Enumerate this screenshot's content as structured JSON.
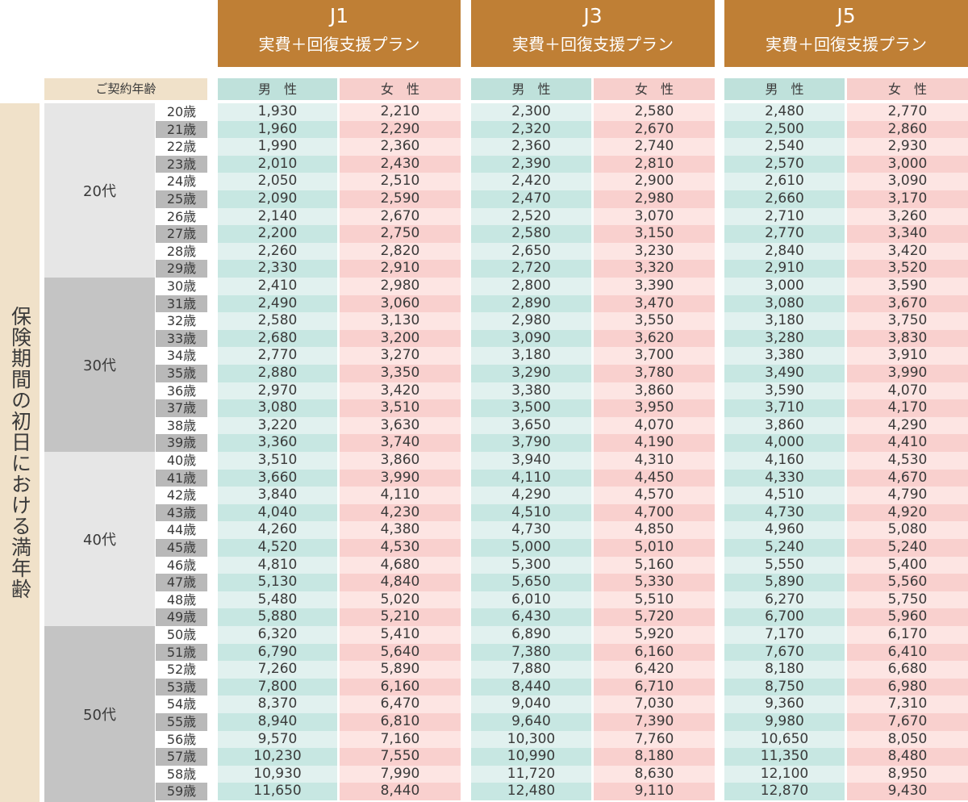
{
  "plans": [
    {
      "name": "J1",
      "title": "実費＋回復支援プラン"
    },
    {
      "name": "J3",
      "title": "実費＋回復支援プラン"
    },
    {
      "name": "J5",
      "title": "実費＋回復支援プラン"
    }
  ],
  "gender_labels": {
    "male": "男　性",
    "female": "女　性"
  },
  "contract_age_label": "ご契約年齢",
  "side_label": "保険期間の初日における満年齢",
  "decades": [
    "20代",
    "30代",
    "40代",
    "50代"
  ],
  "ages": [
    "20歳",
    "21歳",
    "22歳",
    "23歳",
    "24歳",
    "25歳",
    "26歳",
    "27歳",
    "28歳",
    "29歳",
    "30歳",
    "31歳",
    "32歳",
    "33歳",
    "34歳",
    "35歳",
    "36歳",
    "37歳",
    "38歳",
    "39歳",
    "40歳",
    "41歳",
    "42歳",
    "43歳",
    "44歳",
    "45歳",
    "46歳",
    "47歳",
    "48歳",
    "49歳",
    "50歳",
    "51歳",
    "52歳",
    "53歳",
    "54歳",
    "55歳",
    "56歳",
    "57歳",
    "58歳",
    "59歳"
  ],
  "rows": [
    [
      "1,930",
      "2,210",
      "2,300",
      "2,580",
      "2,480",
      "2,770"
    ],
    [
      "1,960",
      "2,290",
      "2,320",
      "2,670",
      "2,500",
      "2,860"
    ],
    [
      "1,990",
      "2,360",
      "2,360",
      "2,740",
      "2,540",
      "2,930"
    ],
    [
      "2,010",
      "2,430",
      "2,390",
      "2,810",
      "2,570",
      "3,000"
    ],
    [
      "2,050",
      "2,510",
      "2,420",
      "2,900",
      "2,610",
      "3,090"
    ],
    [
      "2,090",
      "2,590",
      "2,470",
      "2,980",
      "2,660",
      "3,170"
    ],
    [
      "2,140",
      "2,670",
      "2,520",
      "3,070",
      "2,710",
      "3,260"
    ],
    [
      "2,200",
      "2,750",
      "2,580",
      "3,150",
      "2,770",
      "3,340"
    ],
    [
      "2,260",
      "2,820",
      "2,650",
      "3,230",
      "2,840",
      "3,420"
    ],
    [
      "2,330",
      "2,910",
      "2,720",
      "3,320",
      "2,910",
      "3,520"
    ],
    [
      "2,410",
      "2,980",
      "2,800",
      "3,390",
      "3,000",
      "3,590"
    ],
    [
      "2,490",
      "3,060",
      "2,890",
      "3,470",
      "3,080",
      "3,670"
    ],
    [
      "2,580",
      "3,130",
      "2,980",
      "3,550",
      "3,180",
      "3,750"
    ],
    [
      "2,680",
      "3,200",
      "3,090",
      "3,620",
      "3,280",
      "3,830"
    ],
    [
      "2,770",
      "3,270",
      "3,180",
      "3,700",
      "3,380",
      "3,910"
    ],
    [
      "2,880",
      "3,350",
      "3,290",
      "3,780",
      "3,490",
      "3,990"
    ],
    [
      "2,970",
      "3,420",
      "3,380",
      "3,860",
      "3,590",
      "4,070"
    ],
    [
      "3,080",
      "3,510",
      "3,500",
      "3,950",
      "3,710",
      "4,170"
    ],
    [
      "3,220",
      "3,630",
      "3,650",
      "4,070",
      "3,860",
      "4,290"
    ],
    [
      "3,360",
      "3,740",
      "3,790",
      "4,190",
      "4,000",
      "4,410"
    ],
    [
      "3,510",
      "3,860",
      "3,940",
      "4,310",
      "4,160",
      "4,530"
    ],
    [
      "3,660",
      "3,990",
      "4,110",
      "4,450",
      "4,330",
      "4,670"
    ],
    [
      "3,840",
      "4,110",
      "4,290",
      "4,570",
      "4,510",
      "4,790"
    ],
    [
      "4,040",
      "4,230",
      "4,510",
      "4,700",
      "4,730",
      "4,920"
    ],
    [
      "4,260",
      "4,380",
      "4,730",
      "4,850",
      "4,960",
      "5,080"
    ],
    [
      "4,520",
      "4,530",
      "5,000",
      "5,010",
      "5,240",
      "5,240"
    ],
    [
      "4,810",
      "4,680",
      "5,300",
      "5,160",
      "5,550",
      "5,400"
    ],
    [
      "5,130",
      "4,840",
      "5,650",
      "5,330",
      "5,890",
      "5,560"
    ],
    [
      "5,480",
      "5,020",
      "6,010",
      "5,510",
      "6,270",
      "5,750"
    ],
    [
      "5,880",
      "5,210",
      "6,430",
      "5,720",
      "6,700",
      "5,960"
    ],
    [
      "6,320",
      "5,410",
      "6,890",
      "5,920",
      "7,170",
      "6,170"
    ],
    [
      "6,790",
      "5,640",
      "7,380",
      "6,160",
      "7,670",
      "6,410"
    ],
    [
      "7,260",
      "5,890",
      "7,880",
      "6,420",
      "8,180",
      "6,680"
    ],
    [
      "7,800",
      "6,160",
      "8,440",
      "6,710",
      "8,750",
      "6,980"
    ],
    [
      "8,370",
      "6,470",
      "9,040",
      "7,030",
      "9,360",
      "7,310"
    ],
    [
      "8,940",
      "6,810",
      "9,640",
      "7,390",
      "9,980",
      "7,670"
    ],
    [
      "9,570",
      "7,160",
      "10,300",
      "7,760",
      "10,650",
      "8,050"
    ],
    [
      "10,230",
      "7,550",
      "10,990",
      "8,180",
      "11,350",
      "8,480"
    ],
    [
      "10,930",
      "7,990",
      "11,720",
      "8,630",
      "12,100",
      "8,950"
    ],
    [
      "11,650",
      "8,440",
      "12,480",
      "9,110",
      "12,870",
      "9,430"
    ]
  ],
  "colors": {
    "plan_header": "#bf7f35",
    "side_band": "#f0e1c9",
    "male_header": "#bfe1db",
    "female_header": "#f7cfcc",
    "male_row_light": "#e1f1ef",
    "male_row_dark": "#c7e7e2",
    "female_row_light": "#fde5e3",
    "female_row_dark": "#f9d0ce",
    "decade_light": "#e6e6e6",
    "decade_dark": "#c4c4c4",
    "age_odd": "#b9b9b9"
  }
}
